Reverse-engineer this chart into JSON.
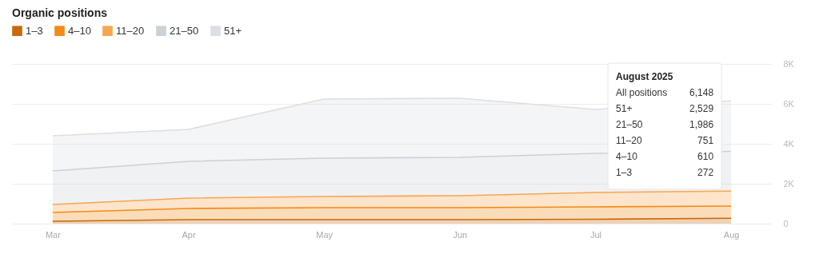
{
  "chart_data": {
    "type": "area",
    "stacked": true,
    "title": "Organic positions",
    "categories": [
      "Mar",
      "Apr",
      "May",
      "Jun",
      "Jul",
      "Aug"
    ],
    "series": [
      {
        "name": "1–3",
        "color": "#c8690b",
        "values": [
          120,
          200,
          200,
          200,
          220,
          272
        ]
      },
      {
        "name": "4–10",
        "color": "#f28b17",
        "values": [
          440,
          560,
          600,
          600,
          620,
          610
        ]
      },
      {
        "name": "11–20",
        "color": "#f7a650",
        "values": [
          400,
          520,
          560,
          600,
          720,
          751
        ]
      },
      {
        "name": "21–50",
        "color": "#ccd1d7",
        "values": [
          1680,
          1840,
          1920,
          1920,
          1960,
          1986
        ]
      },
      {
        "name": "51+",
        "color": "#dcdfe3",
        "values": [
          1760,
          1600,
          2960,
          2960,
          2200,
          2529
        ]
      }
    ],
    "ylim": [
      0,
      8000
    ],
    "yticks": [
      0,
      {
        "value": 2000,
        "label": "2K"
      },
      {
        "value": 4000,
        "label": "4K"
      },
      {
        "value": 6000,
        "label": "6K"
      },
      {
        "value": 8000,
        "label": "8K"
      }
    ],
    "grid": "y",
    "legend": "top left",
    "annotations": [
      "August 2025",
      "All positions 6,148",
      "51+ 2,529",
      "21–50 1,986",
      "11–20 751",
      "4–10 610",
      "1–3 272"
    ]
  }
}
